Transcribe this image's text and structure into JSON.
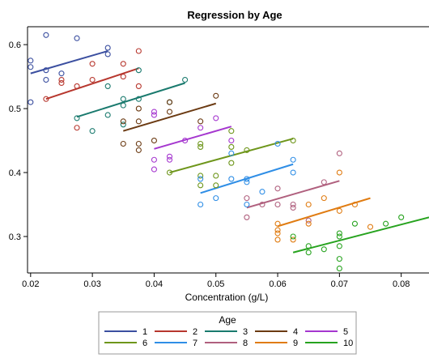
{
  "chart_data": {
    "type": "scatter",
    "title": "Regression by Age",
    "xlabel": "Concentration (g/L)",
    "ylabel": "",
    "xlim": [
      0.0195,
      0.0845
    ],
    "ylim": [
      0.243,
      0.628
    ],
    "x_ticks": [
      0.02,
      0.03,
      0.04,
      0.05,
      0.06,
      0.07,
      0.08
    ],
    "x_tick_labels": [
      "0.02",
      "0.03",
      "0.04",
      "0.05",
      "0.06",
      "0.07",
      "0.08"
    ],
    "y_ticks": [
      0.3,
      0.4,
      0.5,
      0.6
    ],
    "y_tick_labels": [
      "0.3",
      "0.4",
      "0.5",
      "0.6"
    ],
    "grid": false,
    "legend": {
      "title": "Age",
      "placement": "bottom"
    },
    "series": [
      {
        "name": "1",
        "color": "#3b4fa0",
        "points": [
          [
            0.02,
            0.575
          ],
          [
            0.02,
            0.565
          ],
          [
            0.02,
            0.51
          ],
          [
            0.0225,
            0.615
          ],
          [
            0.0225,
            0.56
          ],
          [
            0.0225,
            0.545
          ],
          [
            0.0275,
            0.61
          ],
          [
            0.0325,
            0.595
          ],
          [
            0.0325,
            0.585
          ],
          [
            0.025,
            0.555
          ]
        ],
        "fit": [
          [
            0.02,
            0.555
          ],
          [
            0.0325,
            0.59
          ]
        ]
      },
      {
        "name": "2",
        "color": "#b7372e",
        "points": [
          [
            0.0225,
            0.515
          ],
          [
            0.025,
            0.545
          ],
          [
            0.025,
            0.54
          ],
          [
            0.0275,
            0.535
          ],
          [
            0.03,
            0.57
          ],
          [
            0.03,
            0.545
          ],
          [
            0.035,
            0.57
          ],
          [
            0.035,
            0.55
          ],
          [
            0.0375,
            0.59
          ],
          [
            0.0375,
            0.535
          ],
          [
            0.0275,
            0.47
          ]
        ],
        "fit": [
          [
            0.0225,
            0.515
          ],
          [
            0.0375,
            0.563
          ]
        ]
      },
      {
        "name": "3",
        "color": "#1a7a6e",
        "points": [
          [
            0.0275,
            0.485
          ],
          [
            0.03,
            0.465
          ],
          [
            0.0325,
            0.535
          ],
          [
            0.0325,
            0.49
          ],
          [
            0.035,
            0.515
          ],
          [
            0.035,
            0.505
          ],
          [
            0.0375,
            0.56
          ],
          [
            0.0375,
            0.515
          ],
          [
            0.0425,
            0.51
          ],
          [
            0.045,
            0.545
          ],
          [
            0.035,
            0.475
          ]
        ],
        "fit": [
          [
            0.0275,
            0.487
          ],
          [
            0.045,
            0.54
          ]
        ]
      },
      {
        "name": "4",
        "color": "#6b3a12",
        "points": [
          [
            0.035,
            0.48
          ],
          [
            0.035,
            0.445
          ],
          [
            0.0375,
            0.5
          ],
          [
            0.0375,
            0.48
          ],
          [
            0.0375,
            0.445
          ],
          [
            0.0375,
            0.435
          ],
          [
            0.04,
            0.45
          ],
          [
            0.0425,
            0.51
          ],
          [
            0.0425,
            0.495
          ],
          [
            0.0475,
            0.48
          ],
          [
            0.05,
            0.52
          ]
        ],
        "fit": [
          [
            0.035,
            0.465
          ],
          [
            0.05,
            0.508
          ]
        ]
      },
      {
        "name": "5",
        "color": "#a537cf",
        "points": [
          [
            0.04,
            0.495
          ],
          [
            0.04,
            0.49
          ],
          [
            0.04,
            0.42
          ],
          [
            0.04,
            0.405
          ],
          [
            0.0425,
            0.425
          ],
          [
            0.0425,
            0.42
          ],
          [
            0.045,
            0.45
          ],
          [
            0.0475,
            0.47
          ],
          [
            0.05,
            0.485
          ],
          [
            0.0525,
            0.45
          ]
        ],
        "fit": [
          [
            0.04,
            0.437
          ],
          [
            0.0525,
            0.472
          ]
        ]
      },
      {
        "name": "6",
        "color": "#6e961b",
        "points": [
          [
            0.0425,
            0.4
          ],
          [
            0.0475,
            0.445
          ],
          [
            0.0475,
            0.44
          ],
          [
            0.0475,
            0.395
          ],
          [
            0.0475,
            0.38
          ],
          [
            0.05,
            0.395
          ],
          [
            0.05,
            0.38
          ],
          [
            0.0525,
            0.465
          ],
          [
            0.0525,
            0.44
          ],
          [
            0.0525,
            0.415
          ],
          [
            0.055,
            0.435
          ],
          [
            0.0625,
            0.45
          ]
        ],
        "fit": [
          [
            0.0425,
            0.4
          ],
          [
            0.0625,
            0.453
          ]
        ]
      },
      {
        "name": "7",
        "color": "#2f8ee6",
        "points": [
          [
            0.0475,
            0.39
          ],
          [
            0.0475,
            0.35
          ],
          [
            0.05,
            0.36
          ],
          [
            0.0525,
            0.43
          ],
          [
            0.0525,
            0.39
          ],
          [
            0.055,
            0.39
          ],
          [
            0.055,
            0.385
          ],
          [
            0.055,
            0.35
          ],
          [
            0.0575,
            0.37
          ],
          [
            0.06,
            0.445
          ],
          [
            0.0625,
            0.42
          ],
          [
            0.0625,
            0.4
          ]
        ],
        "fit": [
          [
            0.0475,
            0.368
          ],
          [
            0.0625,
            0.413
          ]
        ]
      },
      {
        "name": "8",
        "color": "#b0607e",
        "points": [
          [
            0.055,
            0.36
          ],
          [
            0.055,
            0.33
          ],
          [
            0.0575,
            0.35
          ],
          [
            0.06,
            0.375
          ],
          [
            0.06,
            0.35
          ],
          [
            0.0625,
            0.35
          ],
          [
            0.0625,
            0.345
          ],
          [
            0.065,
            0.325
          ],
          [
            0.0675,
            0.385
          ],
          [
            0.07,
            0.43
          ]
        ],
        "fit": [
          [
            0.055,
            0.345
          ],
          [
            0.07,
            0.387
          ]
        ]
      },
      {
        "name": "9",
        "color": "#e07c12",
        "points": [
          [
            0.06,
            0.32
          ],
          [
            0.06,
            0.31
          ],
          [
            0.06,
            0.305
          ],
          [
            0.06,
            0.295
          ],
          [
            0.0625,
            0.295
          ],
          [
            0.065,
            0.35
          ],
          [
            0.065,
            0.32
          ],
          [
            0.0675,
            0.36
          ],
          [
            0.07,
            0.4
          ],
          [
            0.07,
            0.34
          ],
          [
            0.0725,
            0.35
          ],
          [
            0.075,
            0.315
          ]
        ],
        "fit": [
          [
            0.06,
            0.316
          ],
          [
            0.075,
            0.36
          ]
        ]
      },
      {
        "name": "10",
        "color": "#27a31f",
        "points": [
          [
            0.0625,
            0.3
          ],
          [
            0.065,
            0.285
          ],
          [
            0.065,
            0.275
          ],
          [
            0.0675,
            0.28
          ],
          [
            0.07,
            0.305
          ],
          [
            0.07,
            0.3
          ],
          [
            0.07,
            0.285
          ],
          [
            0.07,
            0.265
          ],
          [
            0.07,
            0.25
          ],
          [
            0.0725,
            0.32
          ],
          [
            0.0775,
            0.32
          ],
          [
            0.08,
            0.33
          ]
        ],
        "fit": [
          [
            0.0625,
            0.275
          ],
          [
            0.0845,
            0.33
          ]
        ]
      }
    ]
  }
}
